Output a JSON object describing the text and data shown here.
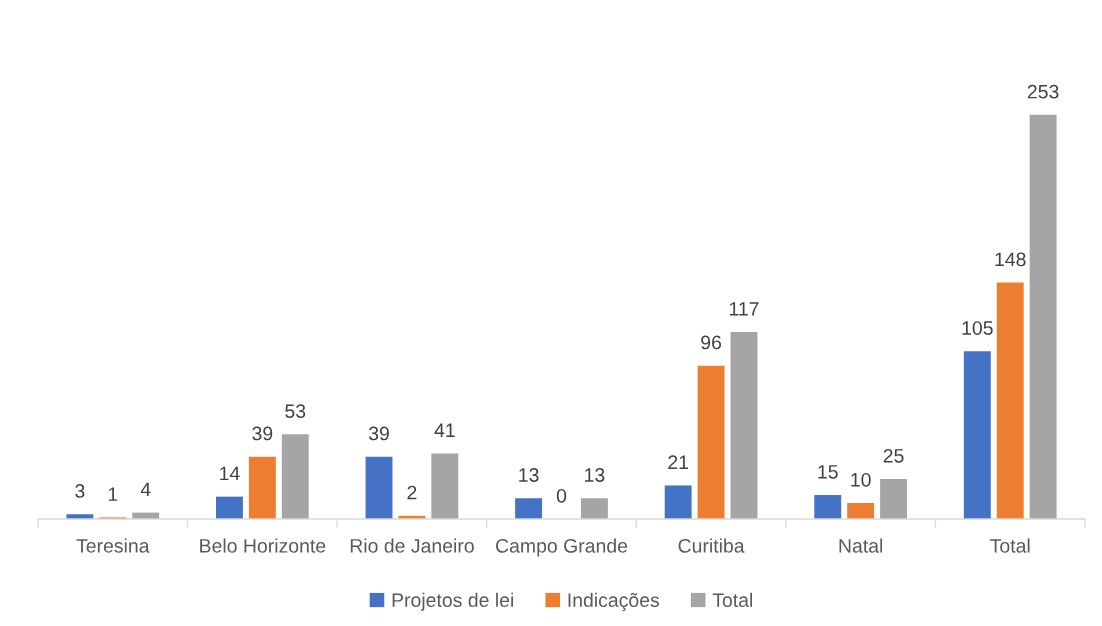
{
  "chart_data": {
    "type": "bar",
    "categories": [
      "Teresina",
      "Belo Horizonte",
      "Rio de Janeiro",
      "Campo Grande",
      "Curitiba",
      "Natal",
      "Total"
    ],
    "series": [
      {
        "name": "Projetos de lei",
        "color": "#4472c4",
        "values": [
          3,
          14,
          39,
          13,
          21,
          15,
          105
        ]
      },
      {
        "name": "Indicações",
        "color": "#ed7d31",
        "values": [
          1,
          39,
          2,
          0,
          96,
          10,
          148
        ]
      },
      {
        "name": "Total",
        "color": "#a5a5a5",
        "values": [
          4,
          53,
          41,
          13,
          117,
          25,
          253
        ]
      }
    ],
    "data_labels": true,
    "legend": "bottom",
    "tick_labels": "x"
  }
}
